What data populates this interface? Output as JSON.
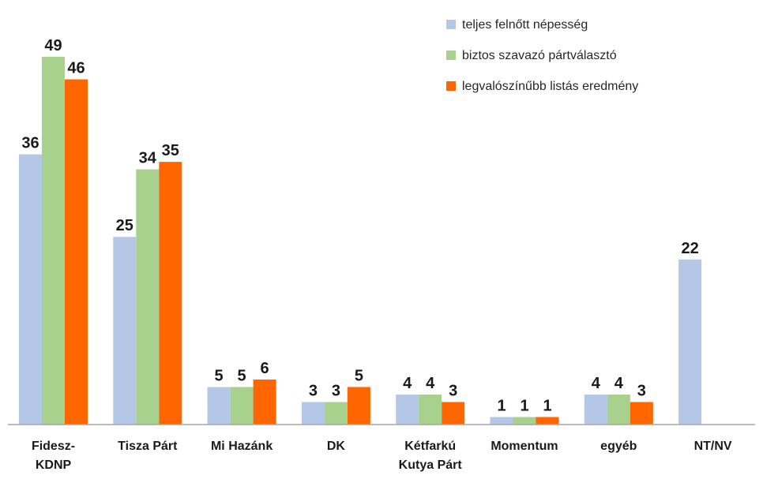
{
  "chart_data": {
    "type": "bar",
    "title": "",
    "xlabel": "",
    "ylabel": "",
    "ylim": [
      0,
      52
    ],
    "grid": false,
    "legend_position": "top-right",
    "categories": [
      [
        "Fidesz-",
        "KDNP"
      ],
      [
        "Tisza Párt"
      ],
      [
        "Mi Hazánk"
      ],
      [
        "DK"
      ],
      [
        "Kétfarkú",
        "Kutya Párt"
      ],
      [
        "Momentum"
      ],
      [
        "egyéb"
      ],
      [
        "NT/NV"
      ]
    ],
    "series": [
      {
        "name": "teljes felnőtt népesség",
        "color": "#b4c7e7",
        "values": [
          36,
          25,
          5,
          3,
          4,
          1,
          4,
          22
        ]
      },
      {
        "name": "biztos szavazó pártválasztó",
        "color": "#a9d18e",
        "values": [
          49,
          34,
          5,
          3,
          4,
          1,
          4,
          null
        ]
      },
      {
        "name": "legvalószínűbb listás eredmény",
        "color": "#ff6600",
        "values": [
          46,
          35,
          6,
          5,
          3,
          1,
          3,
          null
        ]
      }
    ]
  }
}
